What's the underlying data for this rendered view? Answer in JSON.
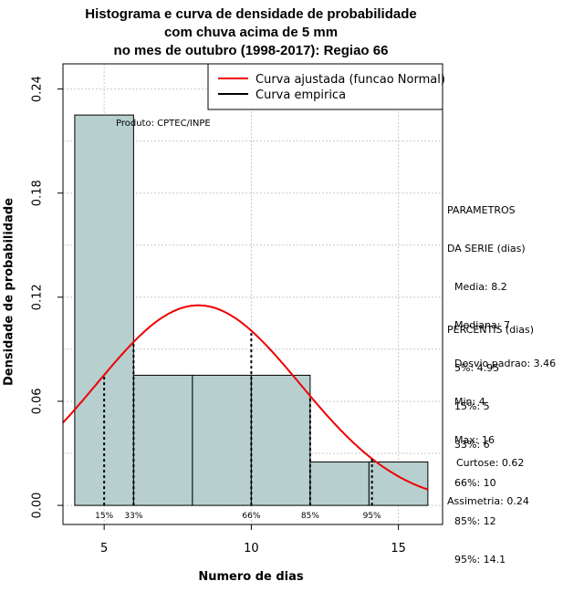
{
  "chart_data": {
    "type": "histogram",
    "title_lines": [
      "Histograma e curva de densidade de probabilidade",
      "com chuva acima de 5 mm",
      "no mes de outubro (1998-2017): Regiao 66"
    ],
    "xlabel": "Numero de dias",
    "ylabel": "Densidade de probabilidade",
    "xlim": [
      3.6,
      16.5
    ],
    "ylim": [
      -0.011,
      0.2545
    ],
    "xticks": [
      5,
      10,
      15
    ],
    "yticks": [
      0.0,
      0.06,
      0.12,
      0.18,
      0.24
    ],
    "ytick_labels": [
      "0.00",
      "0.06",
      "0.12",
      "0.18",
      "0.24"
    ],
    "bins": [
      {
        "from": 4,
        "to": 6,
        "density": 0.225
      },
      {
        "from": 6,
        "to": 8,
        "density": 0.075
      },
      {
        "from": 8,
        "to": 10,
        "density": 0.075
      },
      {
        "from": 10,
        "to": 12,
        "density": 0.075
      },
      {
        "from": 12,
        "to": 14,
        "density": 0.025
      },
      {
        "from": 14,
        "to": 16,
        "density": 0.025
      }
    ],
    "bar_color": "#b7cfcf",
    "curve_color": "#ee0000",
    "normal_fit": {
      "mean": 8.2,
      "sd": 3.46
    },
    "legend": [
      {
        "label": "Curva ajustada (funcao Normal)",
        "color": "#ee0000"
      },
      {
        "label": "Curva empirica",
        "color": "#000000"
      }
    ],
    "percentile_lines": [
      {
        "label": "15%",
        "x": 5
      },
      {
        "label": "33%",
        "x": 6
      },
      {
        "label": "66%",
        "x": 10
      },
      {
        "label": "85%",
        "x": 12
      },
      {
        "label": "95%",
        "x": 14.1
      }
    ],
    "annotation": "Produto: CPTEC/INPE"
  },
  "side_panel": {
    "params_title": [
      "PARAMETROS",
      "DA SERIE (dias)"
    ],
    "params": [
      "Media: 8.2",
      "Mediana: 7",
      "Desvio padrao: 3.46",
      "Min: 4",
      "Max: 16"
    ],
    "percentis_title": "PERCENTIS (dias)",
    "percentis": [
      "5%: 4.95",
      "15%: 5",
      "33%: 6",
      "66%: 10",
      "85%: 12",
      "95%: 14.1"
    ],
    "curtose": "Curtose: 0.62",
    "assimetria": "Assimetria: 0.24"
  }
}
